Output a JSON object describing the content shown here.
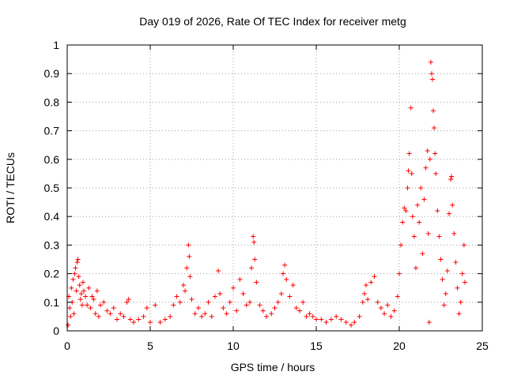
{
  "chart_data": {
    "type": "scatter",
    "title": "Day 019 of 2026, Rate Of TEC Index for receiver metg",
    "xlabel": "GPS time / hours",
    "ylabel": "ROTI / TECUs",
    "xlim": [
      0,
      25
    ],
    "ylim": [
      0,
      1
    ],
    "xticks": [
      0,
      5,
      10,
      15,
      20,
      25
    ],
    "xtick_labels": [
      "0",
      "5",
      "10",
      "15",
      "20",
      "25"
    ],
    "yticks": [
      0,
      0.1,
      0.2,
      0.3,
      0.4,
      0.5,
      0.6,
      0.7,
      0.8,
      0.9,
      1
    ],
    "ytick_labels": [
      "0",
      "0.1",
      "0.2",
      "0.3",
      "0.4",
      "0.5",
      "0.6",
      "0.7",
      "0.8",
      "0.9",
      "1"
    ],
    "grid": true,
    "marker": "+",
    "color": "#ff0000",
    "series": [
      {
        "name": "ROTI",
        "points": [
          [
            0.05,
            0.02
          ],
          [
            0.1,
            0.12
          ],
          [
            0.15,
            0.08
          ],
          [
            0.2,
            0.05
          ],
          [
            0.25,
            0.15
          ],
          [
            0.3,
            0.1
          ],
          [
            0.35,
            0.18
          ],
          [
            0.4,
            0.06
          ],
          [
            0.45,
            0.2
          ],
          [
            0.5,
            0.22
          ],
          [
            0.55,
            0.14
          ],
          [
            0.6,
            0.24
          ],
          [
            0.65,
            0.25
          ],
          [
            0.7,
            0.19
          ],
          [
            0.75,
            0.16
          ],
          [
            0.8,
            0.11
          ],
          [
            0.85,
            0.13
          ],
          [
            0.9,
            0.09
          ],
          [
            0.95,
            0.17
          ],
          [
            1.0,
            0.14
          ],
          [
            1.1,
            0.12
          ],
          [
            1.2,
            0.09
          ],
          [
            1.3,
            0.15
          ],
          [
            1.4,
            0.08
          ],
          [
            1.5,
            0.12
          ],
          [
            1.6,
            0.11
          ],
          [
            1.7,
            0.06
          ],
          [
            1.8,
            0.14
          ],
          [
            1.9,
            0.05
          ],
          [
            2.0,
            0.09
          ],
          [
            2.2,
            0.1
          ],
          [
            2.4,
            0.07
          ],
          [
            2.6,
            0.06
          ],
          [
            2.8,
            0.08
          ],
          [
            3.0,
            0.04
          ],
          [
            3.2,
            0.06
          ],
          [
            3.4,
            0.05
          ],
          [
            3.6,
            0.1
          ],
          [
            3.7,
            0.11
          ],
          [
            3.8,
            0.04
          ],
          [
            4.0,
            0.03
          ],
          [
            4.3,
            0.04
          ],
          [
            4.6,
            0.05
          ],
          [
            4.8,
            0.08
          ],
          [
            5.0,
            0.03
          ],
          [
            5.3,
            0.09
          ],
          [
            5.6,
            0.03
          ],
          [
            5.9,
            0.04
          ],
          [
            6.2,
            0.05
          ],
          [
            6.4,
            0.09
          ],
          [
            6.6,
            0.12
          ],
          [
            6.8,
            0.1
          ],
          [
            7.0,
            0.16
          ],
          [
            7.1,
            0.14
          ],
          [
            7.2,
            0.22
          ],
          [
            7.3,
            0.3
          ],
          [
            7.35,
            0.26
          ],
          [
            7.4,
            0.19
          ],
          [
            7.5,
            0.11
          ],
          [
            7.7,
            0.06
          ],
          [
            7.9,
            0.08
          ],
          [
            8.1,
            0.05
          ],
          [
            8.3,
            0.06
          ],
          [
            8.5,
            0.1
          ],
          [
            8.7,
            0.05
          ],
          [
            8.9,
            0.12
          ],
          [
            9.1,
            0.21
          ],
          [
            9.2,
            0.13
          ],
          [
            9.4,
            0.08
          ],
          [
            9.6,
            0.06
          ],
          [
            9.8,
            0.1
          ],
          [
            10.0,
            0.15
          ],
          [
            10.2,
            0.07
          ],
          [
            10.4,
            0.18
          ],
          [
            10.6,
            0.13
          ],
          [
            10.8,
            0.09
          ],
          [
            11.0,
            0.1
          ],
          [
            11.1,
            0.22
          ],
          [
            11.2,
            0.33
          ],
          [
            11.25,
            0.31
          ],
          [
            11.3,
            0.25
          ],
          [
            11.4,
            0.17
          ],
          [
            11.6,
            0.09
          ],
          [
            11.8,
            0.07
          ],
          [
            12.0,
            0.05
          ],
          [
            12.3,
            0.06
          ],
          [
            12.5,
            0.08
          ],
          [
            12.7,
            0.1
          ],
          [
            12.9,
            0.13
          ],
          [
            13.0,
            0.2
          ],
          [
            13.1,
            0.23
          ],
          [
            13.2,
            0.18
          ],
          [
            13.4,
            0.12
          ],
          [
            13.6,
            0.16
          ],
          [
            13.8,
            0.08
          ],
          [
            14.0,
            0.07
          ],
          [
            14.2,
            0.1
          ],
          [
            14.4,
            0.05
          ],
          [
            14.6,
            0.06
          ],
          [
            14.8,
            0.05
          ],
          [
            15.0,
            0.04
          ],
          [
            15.3,
            0.04
          ],
          [
            15.6,
            0.03
          ],
          [
            15.9,
            0.04
          ],
          [
            16.2,
            0.05
          ],
          [
            16.5,
            0.04
          ],
          [
            16.8,
            0.03
          ],
          [
            17.1,
            0.02
          ],
          [
            17.3,
            0.03
          ],
          [
            17.6,
            0.05
          ],
          [
            17.8,
            0.1
          ],
          [
            17.9,
            0.13
          ],
          [
            18.0,
            0.16
          ],
          [
            18.1,
            0.11
          ],
          [
            18.3,
            0.17
          ],
          [
            18.5,
            0.19
          ],
          [
            18.7,
            0.1
          ],
          [
            18.9,
            0.08
          ],
          [
            19.1,
            0.06
          ],
          [
            19.3,
            0.09
          ],
          [
            19.5,
            0.05
          ],
          [
            19.7,
            0.07
          ],
          [
            19.9,
            0.12
          ],
          [
            20.0,
            0.2
          ],
          [
            20.1,
            0.3
          ],
          [
            20.2,
            0.38
          ],
          [
            20.3,
            0.43
          ],
          [
            20.4,
            0.42
          ],
          [
            20.5,
            0.5
          ],
          [
            20.55,
            0.56
          ],
          [
            20.6,
            0.62
          ],
          [
            20.7,
            0.78
          ],
          [
            20.75,
            0.55
          ],
          [
            20.8,
            0.4
          ],
          [
            20.9,
            0.33
          ],
          [
            21.0,
            0.22
          ],
          [
            21.1,
            0.44
          ],
          [
            21.2,
            0.38
          ],
          [
            21.3,
            0.5
          ],
          [
            21.4,
            0.27
          ],
          [
            21.5,
            0.46
          ],
          [
            21.6,
            0.57
          ],
          [
            21.7,
            0.63
          ],
          [
            21.75,
            0.34
          ],
          [
            21.8,
            0.03
          ],
          [
            21.85,
            0.6
          ],
          [
            21.9,
            0.94
          ],
          [
            21.95,
            0.9
          ],
          [
            22.0,
            0.88
          ],
          [
            22.05,
            0.77
          ],
          [
            22.1,
            0.71
          ],
          [
            22.15,
            0.62
          ],
          [
            22.2,
            0.55
          ],
          [
            22.3,
            0.42
          ],
          [
            22.4,
            0.33
          ],
          [
            22.5,
            0.25
          ],
          [
            22.6,
            0.18
          ],
          [
            22.7,
            0.09
          ],
          [
            22.8,
            0.13
          ],
          [
            22.9,
            0.21
          ],
          [
            23.0,
            0.41
          ],
          [
            23.1,
            0.53
          ],
          [
            23.15,
            0.54
          ],
          [
            23.2,
            0.44
          ],
          [
            23.3,
            0.34
          ],
          [
            23.4,
            0.24
          ],
          [
            23.5,
            0.15
          ],
          [
            23.6,
            0.06
          ],
          [
            23.7,
            0.1
          ],
          [
            23.8,
            0.2
          ],
          [
            23.9,
            0.3
          ],
          [
            23.95,
            0.17
          ]
        ]
      }
    ]
  }
}
